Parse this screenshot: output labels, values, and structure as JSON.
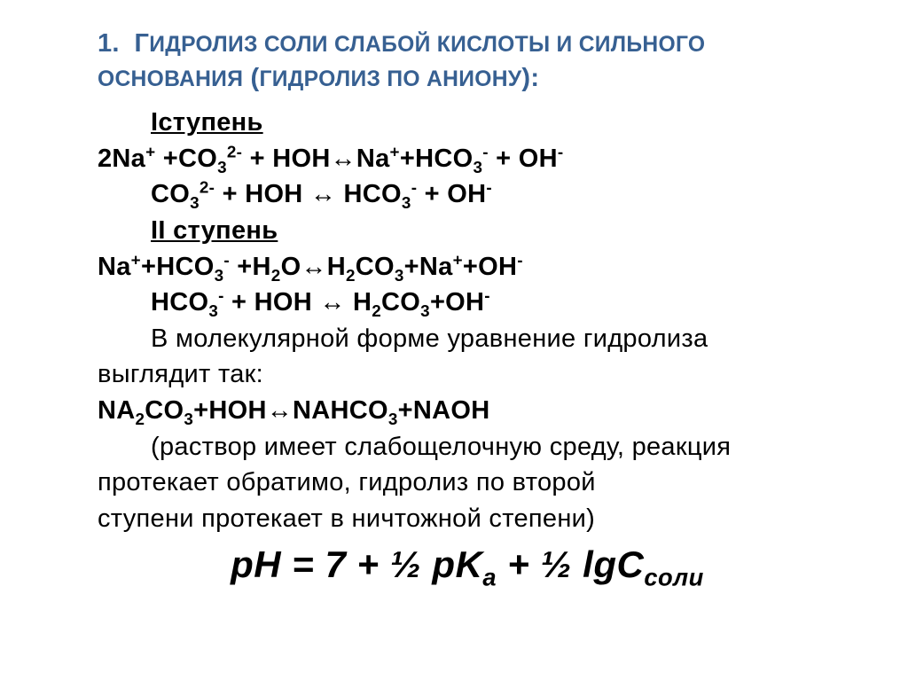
{
  "colors": {
    "heading": "#376092",
    "text": "#000000",
    "background": "#ffffff"
  },
  "fontsizes": {
    "heading": 29,
    "body": 29,
    "formula": 42
  },
  "heading_html": "1.&nbsp;&nbsp;Г<span style='font-size:0.85em'>ИДРОЛИЗ СОЛИ СЛАБОЙ КИСЛОТЫ И СИЛЬНОГО ОСНОВАНИЯ</span> (<span style='font-size:0.85em'>ГИДРОЛИЗ ПО АНИОНУ</span>):",
  "step1_label": "Iступень",
  "eq1_html": "2Na<sup>+</sup> +CO<sub>3</sub><sup>2-</sup> + HOH↔Na<sup>+</sup>+HCO<sub>3</sub><sup>-</sup> + OH<sup>-</sup>",
  "eq2_html": "CO<sub>3</sub><sup>2-</sup> + HOH ↔ HCO<sub>3</sub><sup>-</sup> + OH<sup>-</sup>",
  "step2_label": "II ступень",
  "eq3_html": "Na<sup>+</sup>+HCO<sub>3</sub><sup>-</sup> +H<sub>2</sub>O↔H<sub>2</sub>CO<sub>3</sub>+Na<sup>+</sup>+OH<sup>-</sup>",
  "eq4_html": "HCO<sub>3</sub><sup>-</sup> + HOH ↔ H<sub>2</sub>CO<sub>3</sub>+OH<sup>-</sup>",
  "mol_intro1": "В молекулярной форме уравнение гидролиза",
  "mol_intro2": "выглядит так:",
  "eq5_html": "<span style='white-space:nowrap'>NA<sub>2</sub>CO<sub>3</sub>+HOH↔NAHCO<sub>3</sub>+NAOH</span>",
  "para1": "(раствор имеет слабощелочную среду, реакция",
  "para2": "протекает обратимо, гидролиз по второй",
  "para3": "ступени протекает в ничтожной степени)",
  "ph_formula_html": "pH = 7 + ½ pK<sub>a</sub> + ½ lgC<sub>соли</sub>"
}
